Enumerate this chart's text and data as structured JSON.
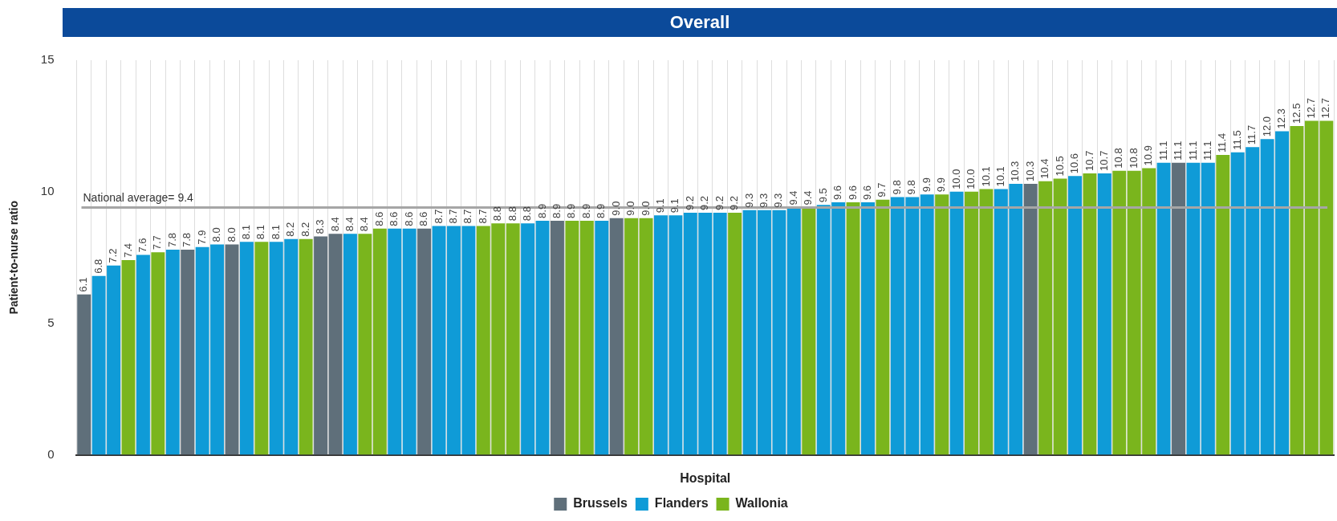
{
  "chart_data": {
    "type": "bar",
    "title": "Overall",
    "xlabel": "Hospital",
    "ylabel": "Patient-to-nurse ratio",
    "categories": [
      null,
      null,
      null,
      null,
      null,
      null,
      null,
      null,
      null,
      null,
      null,
      null,
      null,
      null,
      null,
      null,
      null,
      null,
      null,
      null,
      null,
      null,
      null,
      null,
      null,
      null,
      null,
      null,
      null,
      null,
      null,
      null,
      null,
      null,
      null,
      null,
      null,
      null,
      null,
      null,
      null,
      null,
      null,
      null,
      null,
      null,
      null,
      null,
      null,
      null,
      null,
      null,
      null,
      null,
      null,
      null,
      null,
      null,
      null,
      null,
      null,
      null,
      null,
      null,
      null,
      null,
      null,
      null,
      null,
      null,
      null,
      null,
      null,
      null,
      null,
      null,
      null,
      null,
      null,
      null,
      null,
      null,
      null,
      null,
      null
    ],
    "series": [
      {
        "name": "Brussels",
        "color": "#5f6f7a",
        "values": [
          6.1,
          null,
          null,
          null,
          null,
          null,
          null,
          7.8,
          null,
          null,
          8.0,
          null,
          null,
          null,
          null,
          null,
          8.3,
          8.4,
          null,
          null,
          null,
          null,
          null,
          8.6,
          null,
          null,
          null,
          null,
          null,
          null,
          null,
          null,
          8.9,
          null,
          null,
          null,
          9.0,
          null,
          null,
          null,
          null,
          null,
          null,
          null,
          null,
          null,
          null,
          null,
          null,
          null,
          null,
          null,
          null,
          null,
          null,
          null,
          null,
          null,
          null,
          null,
          null,
          null,
          null,
          null,
          10.3,
          null,
          null,
          null,
          null,
          null,
          null,
          null,
          null,
          null,
          11.1,
          null,
          null,
          null,
          null,
          null,
          null,
          null,
          null,
          null,
          null
        ],
        "value_labels": [
          "6.1",
          null,
          null,
          null,
          null,
          null,
          null,
          "7.8",
          null,
          null,
          "8.0",
          null,
          null,
          null,
          null,
          null,
          "8.3",
          "8.4",
          null,
          null,
          null,
          null,
          null,
          "8.6",
          null,
          null,
          null,
          null,
          null,
          null,
          null,
          null,
          "8.9",
          null,
          null,
          null,
          "9.0",
          null,
          null,
          null,
          null,
          null,
          null,
          null,
          null,
          null,
          null,
          null,
          null,
          null,
          null,
          null,
          null,
          null,
          null,
          null,
          null,
          null,
          null,
          null,
          null,
          null,
          null,
          null,
          "10.3",
          null,
          null,
          null,
          null,
          null,
          null,
          null,
          null,
          null,
          "11.1",
          null,
          null,
          null,
          null,
          null,
          null,
          null,
          null,
          null,
          null
        ]
      },
      {
        "name": "Flanders",
        "color": "#0f9bd7",
        "values": [
          null,
          6.8,
          7.2,
          null,
          7.6,
          null,
          7.8,
          null,
          7.9,
          8.0,
          null,
          8.1,
          null,
          8.1,
          8.2,
          null,
          null,
          null,
          8.4,
          null,
          null,
          8.6,
          8.6,
          null,
          8.7,
          8.7,
          8.7,
          null,
          null,
          null,
          8.8,
          8.9,
          null,
          null,
          null,
          8.9,
          null,
          null,
          null,
          9.1,
          9.1,
          9.2,
          9.2,
          9.2,
          null,
          9.3,
          9.3,
          9.3,
          9.4,
          null,
          9.5,
          9.6,
          null,
          9.6,
          null,
          9.8,
          9.8,
          9.9,
          null,
          10.0,
          null,
          null,
          10.1,
          10.3,
          null,
          null,
          null,
          10.6,
          null,
          10.7,
          null,
          null,
          null,
          11.1,
          null,
          11.1,
          11.1,
          null,
          11.5,
          11.7,
          12.0,
          12.3,
          null,
          null,
          null
        ],
        "value_labels": [
          null,
          "6.8",
          "7.2",
          null,
          "7.6",
          null,
          "7.8",
          null,
          "7.9",
          "8.0",
          null,
          "8.1",
          null,
          "8.1",
          "8.2",
          null,
          null,
          null,
          "8.4",
          null,
          null,
          "8.6",
          "8.6",
          null,
          "8.7",
          "8.7",
          "8.7",
          null,
          null,
          null,
          "8.8",
          "8.9",
          null,
          null,
          null,
          "8.9",
          null,
          null,
          null,
          "9.1",
          "9.1",
          "9.2",
          "9.2",
          "9.2",
          null,
          "9.3",
          "9.3",
          "9.3",
          "9.4",
          null,
          "9.5",
          "9.6",
          null,
          "9.6",
          null,
          "9.8",
          "9.8",
          "9.9",
          null,
          "10.0",
          null,
          null,
          "10.1",
          "10.3",
          null,
          null,
          null,
          "10.6",
          null,
          "10.7",
          null,
          null,
          null,
          "11.1",
          null,
          "11.1",
          "11.1",
          null,
          "11.5",
          "11.7",
          "12.0",
          "12.3",
          null,
          null,
          null
        ]
      },
      {
        "name": "Wallonia",
        "color": "#7ab51d",
        "values": [
          null,
          null,
          null,
          7.4,
          null,
          7.7,
          null,
          null,
          null,
          null,
          null,
          null,
          8.1,
          null,
          null,
          8.2,
          null,
          null,
          null,
          8.4,
          8.6,
          null,
          null,
          null,
          null,
          null,
          null,
          8.7,
          8.8,
          8.8,
          null,
          null,
          null,
          8.9,
          8.9,
          null,
          null,
          9.0,
          9.0,
          null,
          null,
          null,
          null,
          null,
          9.2,
          null,
          null,
          null,
          null,
          9.4,
          null,
          null,
          9.6,
          null,
          9.7,
          null,
          null,
          null,
          9.9,
          null,
          10.0,
          10.1,
          null,
          null,
          null,
          10.4,
          10.5,
          null,
          10.7,
          null,
          10.8,
          10.8,
          10.9,
          null,
          null,
          null,
          null,
          11.4,
          null,
          null,
          null,
          null,
          12.5,
          12.7,
          12.7
        ],
        "value_labels": [
          null,
          null,
          null,
          "7.4",
          null,
          "7.7",
          null,
          null,
          null,
          null,
          null,
          null,
          "8.1",
          null,
          null,
          "8.2",
          null,
          null,
          null,
          "8.4",
          "8.6",
          null,
          null,
          null,
          null,
          null,
          null,
          "8.7",
          "8.8",
          "8.8",
          null,
          null,
          null,
          "8.9",
          "8.9",
          null,
          null,
          "9.0",
          "9.0",
          null,
          null,
          null,
          null,
          null,
          "9.2",
          null,
          null,
          null,
          null,
          "9.4",
          null,
          null,
          "9.6",
          null,
          "9.7",
          null,
          null,
          null,
          "9.9",
          null,
          "10.0",
          "10.1",
          null,
          null,
          null,
          "10.4",
          "10.5",
          null,
          "10.7",
          null,
          "10.8",
          "10.8",
          "10.9",
          null,
          null,
          null,
          null,
          "11.4",
          null,
          null,
          null,
          null,
          "12.5",
          "12.7",
          "12.7"
        ]
      }
    ],
    "ylim": [
      0,
      15
    ],
    "yticks": [
      0,
      5,
      10,
      15
    ],
    "grid": "x",
    "legend": "bottom",
    "ref_lines": [
      {
        "axis": "y",
        "value": 9.4,
        "label": "National average= 9.4",
        "color": "#a6a6a6"
      }
    ]
  }
}
